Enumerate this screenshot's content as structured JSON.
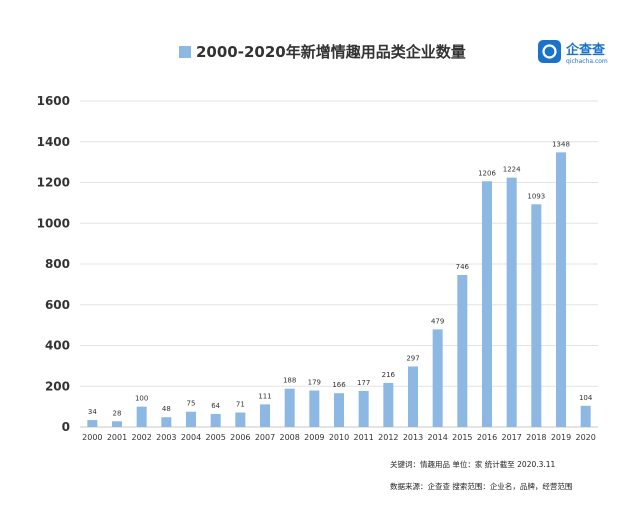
{
  "logo": {
    "name": "企查查",
    "domain": "qichacha.com"
  },
  "footnotes": {
    "line1": "关键词：情趣用品   单位：家   统计截至 2020.3.11",
    "line2": "数据来源：企查查  搜索范围：企业名，品牌，经营范围"
  },
  "colors": {
    "bar": "#8db8e3",
    "grid": "#e3e3e3",
    "brand": "#1a73c8"
  },
  "icons": [
    "logo-q-icon",
    "legend-swatch-icon"
  ],
  "chart_data": {
    "type": "bar",
    "title": "2000-2020年新增情趣用品类企业数量",
    "legend_position": "top",
    "grid": true,
    "ylim": [
      0,
      1600
    ],
    "yticks": [
      "0",
      "200",
      "400",
      "600",
      "800",
      "1000",
      "1200",
      "1400",
      "1600"
    ],
    "categories": [
      "2000",
      "2001",
      "2002",
      "2003",
      "2004",
      "2005",
      "2006",
      "2007",
      "2008",
      "2009",
      "2010",
      "2011",
      "2012",
      "2013",
      "2014",
      "2015",
      "2016",
      "2017",
      "2018",
      "2019",
      "2020"
    ],
    "values": [
      34,
      28,
      100,
      48,
      75,
      64,
      71,
      111,
      188,
      179,
      166,
      177,
      216,
      297,
      479,
      746,
      1206,
      1224,
      1093,
      1348,
      104
    ]
  }
}
